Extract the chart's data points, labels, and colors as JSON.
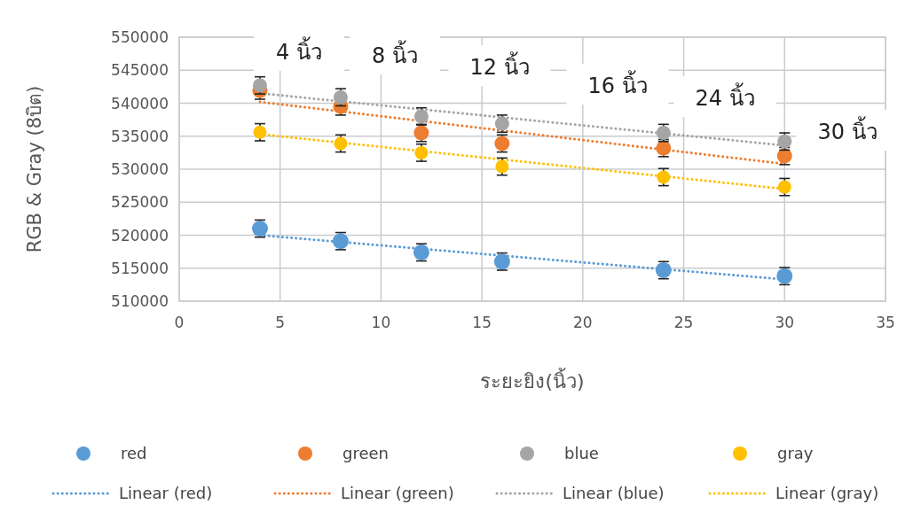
{
  "chart_data": {
    "type": "scatter",
    "xlabel": "ระยะยิง(นิ้ว)",
    "ylabel": "RGB & Gray (8บิต)",
    "xlim": [
      0,
      35
    ],
    "xticks": [
      0,
      5,
      10,
      15,
      20,
      25,
      30,
      35
    ],
    "ylim": [
      510000,
      550000
    ],
    "yticks": [
      510000,
      515000,
      520000,
      525000,
      530000,
      535000,
      540000,
      545000,
      550000
    ],
    "grid": true,
    "legend": "bottom",
    "marker": "circle",
    "series": [
      {
        "name": "red",
        "color": "#5b9bd5",
        "x": [
          4,
          8,
          12,
          16,
          24,
          30
        ],
        "values": [
          521000,
          519100,
          517400,
          516000,
          514700,
          513800
        ],
        "errors": [
          1300,
          1300,
          1300,
          1300,
          1300,
          1300
        ]
      },
      {
        "name": "green",
        "color": "#ed7d31",
        "x": [
          4,
          8,
          12,
          16,
          24,
          30
        ],
        "values": [
          541900,
          539500,
          535500,
          533900,
          533200,
          532000
        ],
        "errors": [
          1300,
          1300,
          1300,
          1300,
          1300,
          1300
        ]
      },
      {
        "name": "blue",
        "color": "#a5a5a5",
        "x": [
          4,
          8,
          12,
          16,
          24,
          30
        ],
        "values": [
          542700,
          540900,
          538000,
          536900,
          535500,
          534200
        ],
        "errors": [
          1300,
          1300,
          1300,
          1300,
          1300,
          1300
        ]
      },
      {
        "name": "gray",
        "color": "#ffc000",
        "x": [
          4,
          8,
          12,
          16,
          24,
          30
        ],
        "values": [
          535600,
          533900,
          532500,
          530400,
          528800,
          527300
        ],
        "errors": [
          1300,
          1300,
          1300,
          1300,
          1300,
          1300
        ]
      },
      {
        "name": "Linear (red)",
        "type": "line",
        "color": "#5b9bd5",
        "x": [
          4,
          30
        ],
        "values": [
          520000,
          513300
        ],
        "line_style": "dotted",
        "marker": "none"
      },
      {
        "name": "Linear (green)",
        "type": "line",
        "color": "#ed7d31",
        "x": [
          4,
          30
        ],
        "values": [
          540200,
          530800
        ],
        "line_style": "dotted",
        "marker": "none"
      },
      {
        "name": "Linear (blue)",
        "type": "line",
        "color": "#a5a5a5",
        "x": [
          4,
          30
        ],
        "values": [
          541500,
          533600
        ],
        "line_style": "dotted",
        "marker": "none"
      },
      {
        "name": "Linear (gray)",
        "type": "line",
        "color": "#ffc000",
        "x": [
          4,
          30
        ],
        "values": [
          535300,
          527000
        ],
        "line_style": "dotted",
        "marker": "none"
      }
    ],
    "annotations": [
      "4 นิ้ว",
      "8 นิ้ว",
      "12 นิ้ว",
      "16 นิ้ว",
      "24 นิ้ว",
      "30 นิ้ว"
    ]
  }
}
